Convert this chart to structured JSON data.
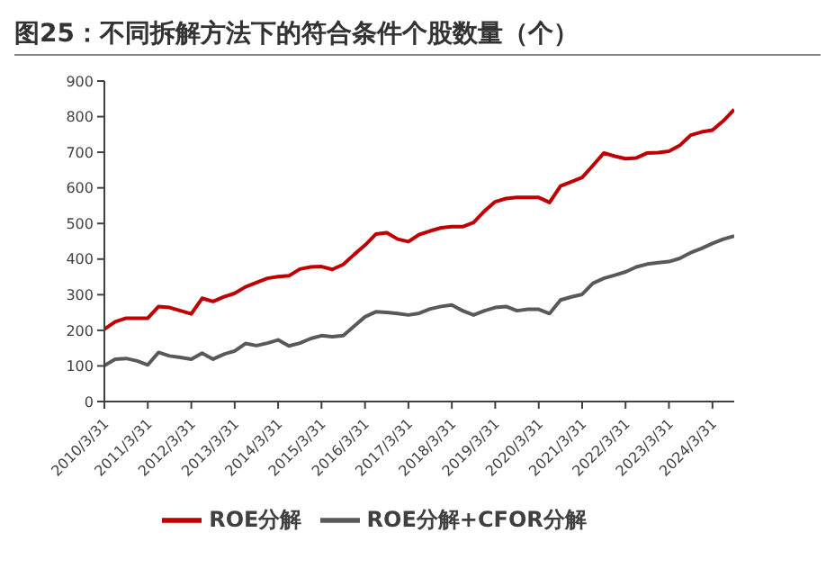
{
  "chart_data": {
    "type": "line",
    "title": "图25：不同拆解方法下的符合条件个股数量（个）",
    "x": [
      "2010-03-31",
      "2010-06-30",
      "2010-09-30",
      "2010-12-31",
      "2011-03-31",
      "2011-06-30",
      "2011-09-30",
      "2011-12-31",
      "2012-03-31",
      "2012-06-30",
      "2012-09-30",
      "2012-12-31",
      "2013-03-31",
      "2013-06-30",
      "2013-09-30",
      "2013-12-31",
      "2014-03-31",
      "2014-06-30",
      "2014-09-30",
      "2014-12-31",
      "2015-03-31",
      "2015-06-30",
      "2015-09-30",
      "2015-12-31",
      "2016-03-31",
      "2016-06-30",
      "2016-09-30",
      "2016-12-31",
      "2017-03-31",
      "2017-06-30",
      "2017-09-30",
      "2017-12-31",
      "2018-03-31",
      "2018-06-30",
      "2018-09-30",
      "2018-12-31",
      "2019-03-31",
      "2019-06-30",
      "2019-09-30",
      "2019-12-31",
      "2020-03-31",
      "2020-06-30",
      "2020-09-30",
      "2020-12-31",
      "2021-03-31",
      "2021-06-30",
      "2021-09-30",
      "2021-12-31",
      "2022-03-31",
      "2022-06-30",
      "2022-09-30",
      "2022-12-31",
      "2023-03-31",
      "2023-06-30",
      "2023-09-30",
      "2023-12-31",
      "2024-03-31",
      "2024-06-30",
      "2024-09-30"
    ],
    "series": [
      {
        "name": "ROE分解",
        "color": "#c00000",
        "values": [
          203,
          224,
          234,
          234,
          234,
          267,
          264,
          255,
          246,
          290,
          281,
          294,
          304,
          322,
          334,
          346,
          351,
          353,
          372,
          378,
          379,
          371,
          385,
          413,
          439,
          470,
          474,
          456,
          449,
          469,
          479,
          488,
          491,
          491,
          503,
          535,
          561,
          570,
          573,
          573,
          573,
          559,
          605,
          617,
          629,
          663,
          698,
          689,
          682,
          684,
          698,
          699,
          703,
          719,
          748,
          757,
          762,
          788,
          820
        ]
      },
      {
        "name": "ROE分解+CFOR分解",
        "color": "#595959",
        "values": [
          101,
          119,
          121,
          114,
          103,
          138,
          128,
          124,
          119,
          136,
          119,
          133,
          142,
          163,
          157,
          164,
          173,
          156,
          164,
          177,
          185,
          182,
          185,
          212,
          238,
          252,
          250,
          247,
          243,
          248,
          260,
          267,
          271,
          255,
          243,
          255,
          264,
          267,
          255,
          259,
          259,
          247,
          285,
          294,
          301,
          332,
          346,
          355,
          364,
          378,
          386,
          390,
          393,
          402,
          418,
          430,
          444,
          456,
          465
        ]
      }
    ],
    "xlim": [
      "2010-03-31",
      "2024-09-30"
    ],
    "xticks": [
      {
        "value": "2010-03-31",
        "label": "2010/3/31"
      },
      {
        "value": "2011-03-31",
        "label": "2011/3/31"
      },
      {
        "value": "2012-03-31",
        "label": "2012/3/31"
      },
      {
        "value": "2013-03-31",
        "label": "2013/3/31"
      },
      {
        "value": "2014-03-31",
        "label": "2014/3/31"
      },
      {
        "value": "2015-03-31",
        "label": "2015/3/31"
      },
      {
        "value": "2016-03-31",
        "label": "2016/3/31"
      },
      {
        "value": "2017-03-31",
        "label": "2017/3/31"
      },
      {
        "value": "2018-03-31",
        "label": "2018/3/31"
      },
      {
        "value": "2019-03-31",
        "label": "2019/3/31"
      },
      {
        "value": "2020-03-31",
        "label": "2020/3/31"
      },
      {
        "value": "2021-03-31",
        "label": "2021/3/31"
      },
      {
        "value": "2022-03-31",
        "label": "2022/3/31"
      },
      {
        "value": "2023-03-31",
        "label": "2023/3/31"
      },
      {
        "value": "2024-03-31",
        "label": "2024/3/31"
      }
    ],
    "ylim": [
      0,
      900
    ],
    "yticks": [
      0,
      100,
      200,
      300,
      400,
      500,
      600,
      700,
      800,
      900
    ],
    "grid": false,
    "legend": "bottom",
    "marker": "none",
    "line_style": "solid"
  }
}
